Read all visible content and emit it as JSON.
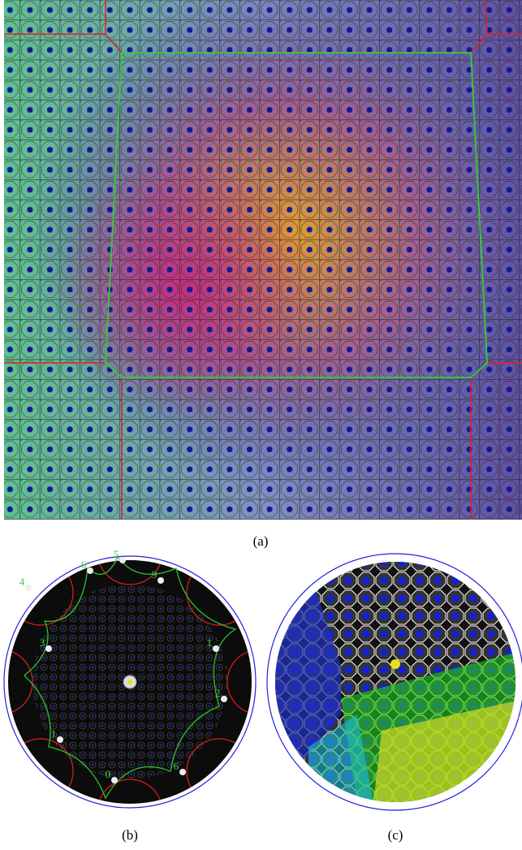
{
  "panels": [
    {
      "caption": "(a)"
    },
    {
      "caption": "(b)",
      "labels": [
        "5",
        "6",
        "9",
        "4",
        "1",
        "3",
        "2",
        "1",
        "6",
        "0"
      ]
    },
    {
      "caption": "(c)"
    }
  ]
}
